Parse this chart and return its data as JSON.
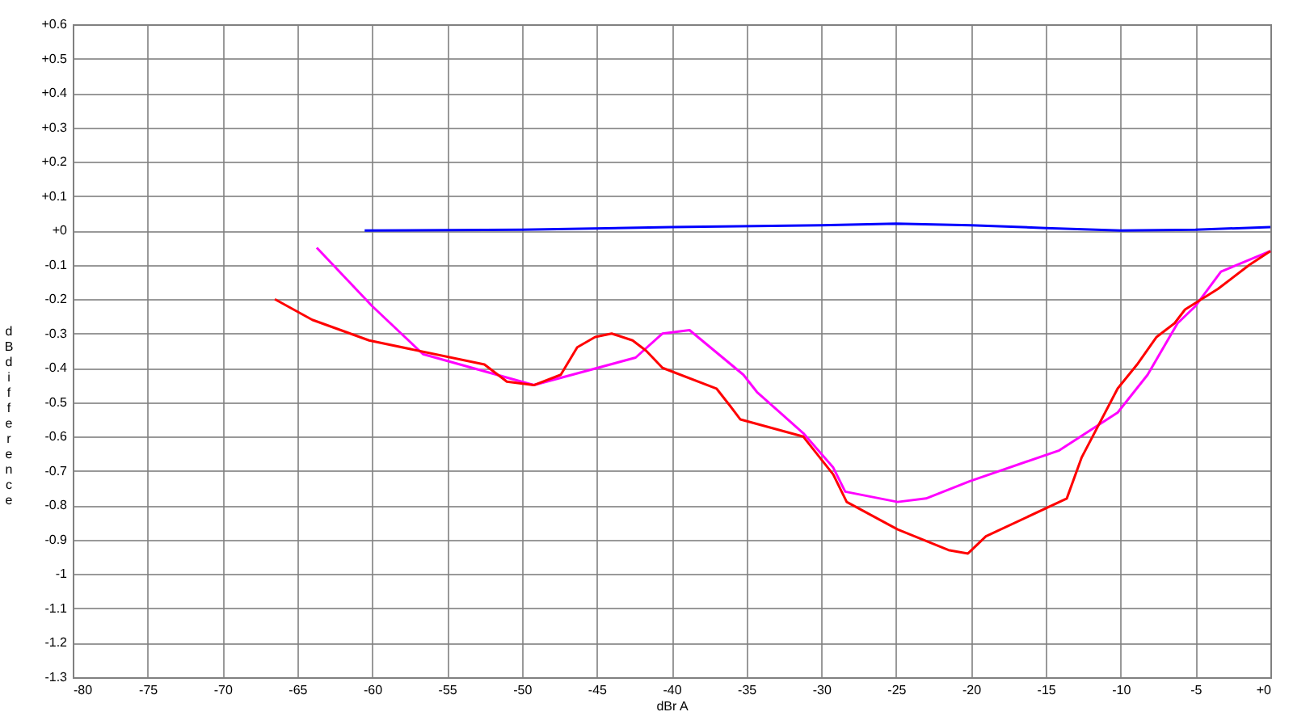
{
  "chart_data": {
    "type": "line",
    "xlabel": "dBr A",
    "ylabel": "dB difference",
    "xlim": [
      -80,
      0
    ],
    "xticks": [
      -80,
      -75,
      -70,
      -65,
      -60,
      -55,
      -50,
      -45,
      -40,
      -35,
      -30,
      -25,
      -20,
      -15,
      -10,
      -5,
      {
        "value": 0,
        "label": "+0"
      }
    ],
    "ylim": [
      -1.3,
      0.6
    ],
    "yticks": [
      -1.3,
      -1.2,
      -1.1,
      -1,
      -0.9,
      -0.8,
      -0.7,
      -0.6,
      -0.5,
      -0.4,
      -0.3,
      -0.2,
      -0.1,
      {
        "value": 0,
        "label": "+0"
      },
      {
        "value": 0.1,
        "label": "+0.1"
      },
      {
        "value": 0.2,
        "label": "+0.2"
      },
      {
        "value": 0.3,
        "label": "+0.3"
      },
      {
        "value": 0.4,
        "label": "+0.4"
      },
      {
        "value": 0.5,
        "label": "+0.5"
      },
      {
        "value": 0.6,
        "label": "+0.6"
      }
    ],
    "grid": true,
    "series": [
      {
        "color": "#0000ff",
        "x": [
          -60.5,
          -50,
          -40,
          -30,
          -25,
          -20,
          -15,
          -10,
          -5,
          0
        ],
        "values": [
          0,
          0.002,
          0.01,
          0.015,
          0.02,
          0.015,
          0.007,
          0,
          0.002,
          0.01
        ]
      },
      {
        "color": "#ff00ff",
        "x": [
          -63.7,
          -60,
          -56.6,
          -49.2,
          -42.4,
          -40.6,
          -38.8,
          -35.2,
          -34.3,
          -31.2,
          -29.2,
          -28.4,
          -24.9,
          -23,
          -20.1,
          -14.1,
          -10.2,
          -8.2,
          -6.2,
          -5,
          -3.3,
          0
        ],
        "values": [
          -0.05,
          -0.22,
          -0.36,
          -0.45,
          -0.37,
          -0.3,
          -0.29,
          -0.42,
          -0.47,
          -0.59,
          -0.69,
          -0.76,
          -0.79,
          -0.78,
          -0.73,
          -0.64,
          -0.53,
          -0.42,
          -0.27,
          -0.22,
          -0.12,
          -0.06
        ]
      },
      {
        "color": "#ff0000",
        "x": [
          -66.5,
          -64,
          -60.2,
          -52.5,
          -51,
          -49.2,
          -47.4,
          -46.3,
          -45.1,
          -44,
          -42.6,
          -41.7,
          -40.6,
          -37,
          -36.1,
          -35.4,
          -31.2,
          -29.2,
          -28.3,
          -24.9,
          -21.5,
          -20.2,
          -19,
          -13.6,
          -12.6,
          -10.2,
          -8.9,
          -7.6,
          -6.4,
          -5.7,
          -3.5,
          -1.4,
          0
        ],
        "values": [
          -0.2,
          -0.26,
          -0.32,
          -0.39,
          -0.44,
          -0.45,
          -0.42,
          -0.34,
          -0.31,
          -0.3,
          -0.32,
          -0.35,
          -0.4,
          -0.46,
          -0.51,
          -0.55,
          -0.6,
          -0.71,
          -0.79,
          -0.87,
          -0.93,
          -0.94,
          -0.89,
          -0.78,
          -0.66,
          -0.46,
          -0.39,
          -0.31,
          -0.27,
          -0.23,
          -0.17,
          -0.1,
          -0.06
        ]
      }
    ]
  }
}
